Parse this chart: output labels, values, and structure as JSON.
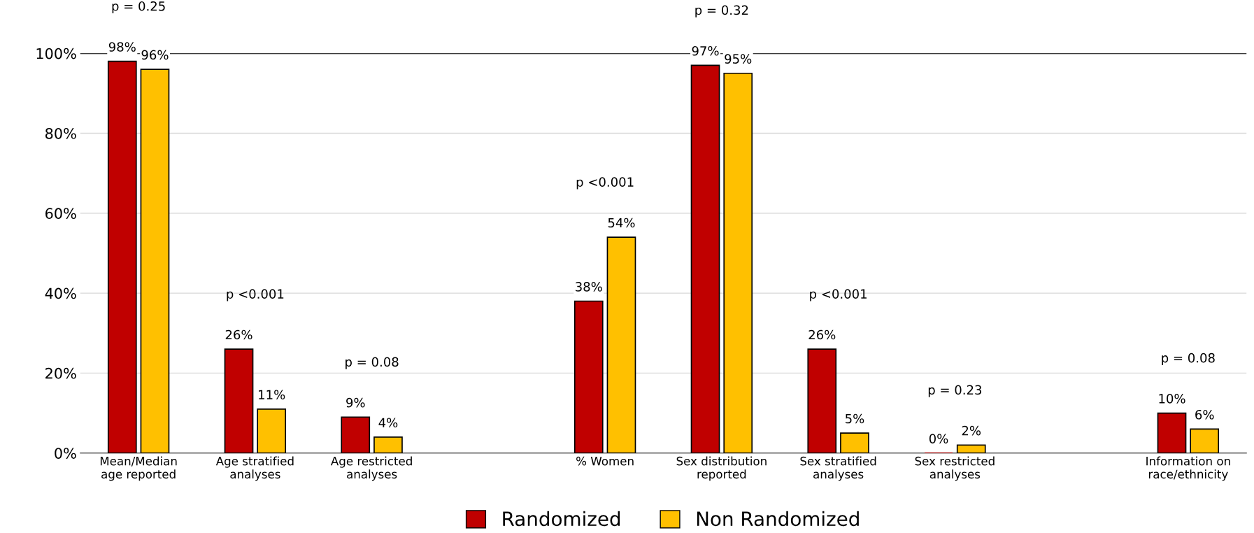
{
  "chart_data": {
    "type": "bar",
    "categories": [
      "Mean/Median\nage reported",
      "Age stratified\nanalyses",
      "Age restricted\nanalyses",
      null,
      "% Women",
      "Sex distribution\nreported",
      "Sex stratified\nanalyses",
      "Sex restricted\nanalyses",
      null,
      "Information on\nrace/ethnicity"
    ],
    "series": [
      {
        "name": "Randomized",
        "color": "#c00000",
        "values": [
          98,
          26,
          9,
          null,
          38,
          97,
          26,
          0,
          null,
          10
        ],
        "value_labels": [
          "98%",
          "26%",
          "9%",
          null,
          "38%",
          "97%",
          "26%",
          "0%",
          null,
          "10%"
        ]
      },
      {
        "name": "Non Randomized",
        "color": "#ffc000",
        "values": [
          96,
          11,
          4,
          null,
          54,
          95,
          5,
          2,
          null,
          6
        ],
        "value_labels": [
          "96%",
          "11%",
          "4%",
          null,
          "54%",
          "95%",
          "5%",
          "2%",
          null,
          "6%"
        ]
      }
    ],
    "ylim": [
      0,
      100
    ],
    "yticks": [
      {
        "value": 0,
        "label": "0%"
      },
      {
        "value": 20,
        "label": "20%"
      },
      {
        "value": 40,
        "label": "40%"
      },
      {
        "value": 60,
        "label": "60%"
      },
      {
        "value": 80,
        "label": "80%"
      },
      {
        "value": 100,
        "label": "100%"
      }
    ],
    "grid": "y",
    "ref_lines": [
      {
        "axis": "y",
        "value": 100,
        "color": "#000000"
      }
    ],
    "legend": "bottom",
    "annotations": [
      "p = 0.25",
      "p <0.001",
      "p = 0.08",
      "p <0.001",
      "p = 0.32",
      "p <0.001",
      "p = 0.23",
      "p = 0.08"
    ]
  }
}
